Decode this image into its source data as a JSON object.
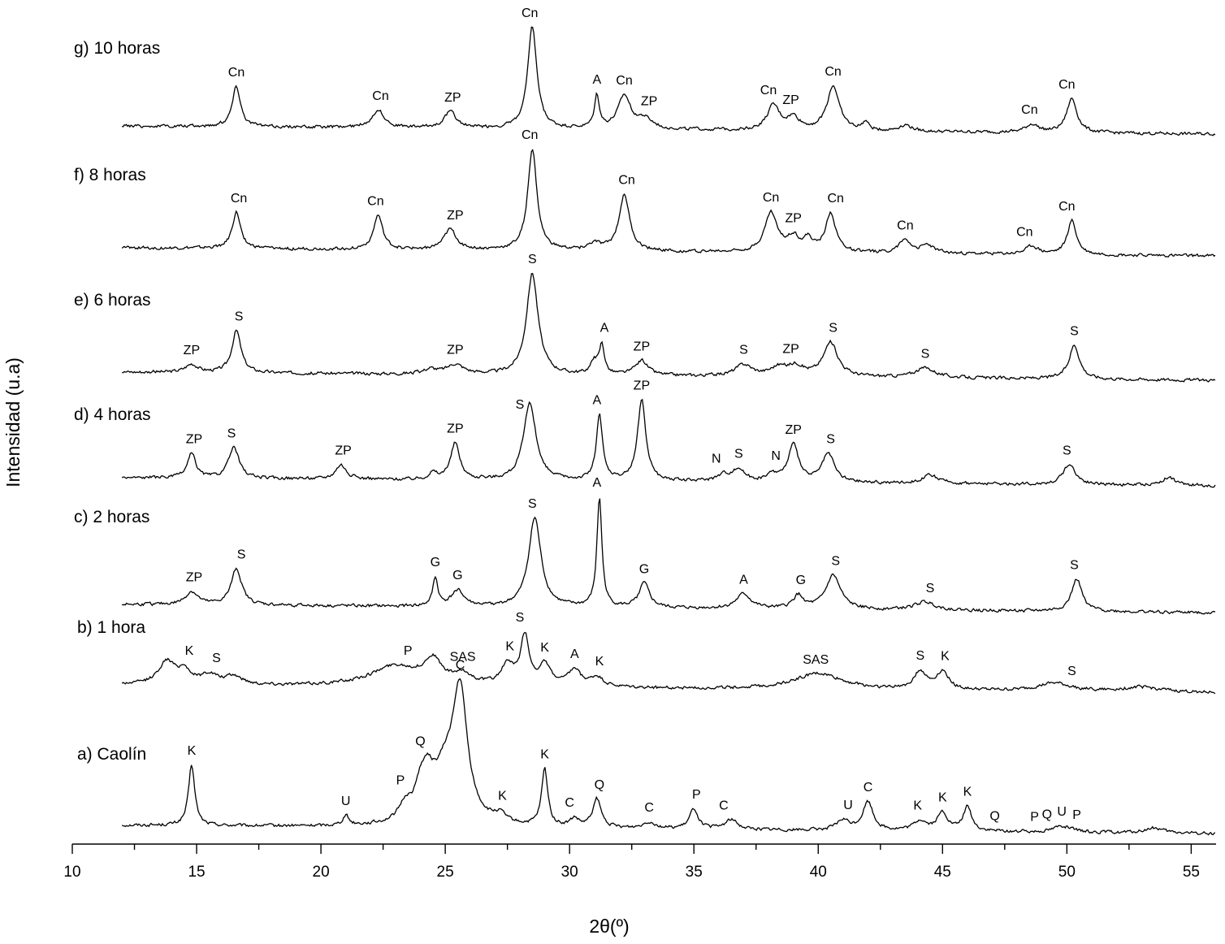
{
  "chart_data": {
    "type": "line",
    "xlabel": "2θ(º)",
    "ylabel": "Intensidad (u.a)",
    "xlim": [
      10,
      56
    ],
    "xticks_major": [
      10,
      15,
      20,
      25,
      30,
      35,
      40,
      45,
      50,
      55
    ],
    "xtick_minor_step": 2.5,
    "grid": false,
    "legend": "none",
    "series": [
      {
        "name": "a) Caolín",
        "baseline": 0,
        "noise": 4,
        "peaks": [
          [
            14.8,
            75,
            0.15
          ],
          [
            21.0,
            12,
            0.15
          ],
          [
            23.4,
            20,
            0.3
          ],
          [
            24.0,
            30,
            0.25
          ],
          [
            24.3,
            40,
            0.3
          ],
          [
            25.6,
            150,
            0.35
          ],
          [
            25.0,
            60,
            0.6
          ],
          [
            27.2,
            10,
            0.3
          ],
          [
            29.0,
            70,
            0.15
          ],
          [
            30.2,
            10,
            0.2
          ],
          [
            31.1,
            35,
            0.2
          ],
          [
            33.2,
            8,
            0.3
          ],
          [
            35.0,
            25,
            0.2
          ],
          [
            36.5,
            12,
            0.3
          ],
          [
            41.0,
            12,
            0.3
          ],
          [
            42.0,
            35,
            0.25
          ],
          [
            44.1,
            12,
            0.3
          ],
          [
            45.0,
            22,
            0.25
          ],
          [
            46.0,
            30,
            0.2
          ],
          [
            49.8,
            8,
            0.4
          ],
          [
            53.5,
            6,
            0.4
          ]
        ],
        "labels": [
          [
            "K",
            14.8
          ],
          [
            "U",
            21.0
          ],
          [
            "P",
            23.2
          ],
          [
            "Q",
            24.0
          ],
          [
            "C",
            25.6
          ],
          [
            "K",
            27.3
          ],
          [
            "K",
            29.0
          ],
          [
            "C",
            30.0
          ],
          [
            "Q",
            31.2
          ],
          [
            "C",
            33.2
          ],
          [
            "P",
            35.1
          ],
          [
            "C",
            36.2
          ],
          [
            "U",
            41.2
          ],
          [
            "C",
            42.0
          ],
          [
            "K",
            44.0
          ],
          [
            "K",
            45.0
          ],
          [
            "K",
            46.0
          ],
          [
            "Q",
            47.1
          ],
          [
            "P",
            48.7
          ],
          [
            "Q",
            49.2
          ],
          [
            "U",
            49.8
          ],
          [
            "P",
            50.4
          ]
        ]
      },
      {
        "name": "b) 1 hora",
        "baseline": 0,
        "noise": 4,
        "peaks": [
          [
            13.8,
            28,
            0.4
          ],
          [
            14.5,
            16,
            0.3
          ],
          [
            15.5,
            12,
            0.4
          ],
          [
            16.5,
            10,
            0.4
          ],
          [
            23.0,
            25,
            1.2
          ],
          [
            24.5,
            28,
            0.4
          ],
          [
            25.7,
            12,
            0.5
          ],
          [
            27.5,
            25,
            0.3
          ],
          [
            28.2,
            60,
            0.2
          ],
          [
            29.0,
            25,
            0.3
          ],
          [
            30.2,
            20,
            0.3
          ],
          [
            31.1,
            12,
            0.3
          ],
          [
            40.0,
            20,
            1.2
          ],
          [
            44.1,
            22,
            0.3
          ],
          [
            45.0,
            22,
            0.3
          ],
          [
            49.5,
            10,
            0.8
          ],
          [
            53.0,
            6,
            1.0
          ]
        ],
        "labels": [
          [
            "K",
            14.7
          ],
          [
            "S",
            15.8
          ],
          [
            "P",
            23.5
          ],
          [
            "SAS",
            25.7
          ],
          [
            "K",
            27.6
          ],
          [
            "S",
            28.0
          ],
          [
            "K",
            29.0
          ],
          [
            "A",
            30.2
          ],
          [
            "K",
            31.2
          ],
          [
            "SAS",
            39.9
          ],
          [
            "S",
            44.1
          ],
          [
            "K",
            45.1
          ],
          [
            "S",
            50.2
          ]
        ]
      },
      {
        "name": "c) 2 horas",
        "baseline": 0,
        "noise": 4,
        "peaks": [
          [
            14.8,
            16,
            0.3
          ],
          [
            16.6,
            45,
            0.25
          ],
          [
            24.6,
            35,
            0.12
          ],
          [
            25.5,
            20,
            0.3
          ],
          [
            28.6,
            110,
            0.3
          ],
          [
            31.2,
            135,
            0.12
          ],
          [
            33.0,
            30,
            0.25
          ],
          [
            37.0,
            18,
            0.35
          ],
          [
            39.2,
            16,
            0.25
          ],
          [
            40.6,
            42,
            0.35
          ],
          [
            44.3,
            10,
            0.5
          ],
          [
            50.4,
            40,
            0.25
          ]
        ],
        "labels": [
          [
            "ZP",
            14.9
          ],
          [
            "S",
            16.8
          ],
          [
            "G",
            24.6
          ],
          [
            "G",
            25.5
          ],
          [
            "S",
            28.5
          ],
          [
            "A",
            31.1
          ],
          [
            "G",
            33.0
          ],
          [
            "A",
            37.0
          ],
          [
            "G",
            39.3
          ],
          [
            "S",
            40.7
          ],
          [
            "S",
            44.5
          ],
          [
            "S",
            50.3
          ]
        ]
      },
      {
        "name": "d) 4 horas",
        "baseline": 0,
        "noise": 4,
        "peaks": [
          [
            14.8,
            30,
            0.2
          ],
          [
            16.5,
            38,
            0.25
          ],
          [
            20.8,
            18,
            0.25
          ],
          [
            24.5,
            8,
            0.2
          ],
          [
            25.4,
            45,
            0.22
          ],
          [
            28.4,
            95,
            0.3
          ],
          [
            31.2,
            80,
            0.15
          ],
          [
            32.9,
            100,
            0.2
          ],
          [
            36.2,
            8,
            0.3
          ],
          [
            36.8,
            15,
            0.3
          ],
          [
            38.2,
            8,
            0.3
          ],
          [
            39.0,
            45,
            0.25
          ],
          [
            40.4,
            35,
            0.3
          ],
          [
            44.5,
            10,
            0.4
          ],
          [
            50.1,
            25,
            0.3
          ],
          [
            54.1,
            10,
            0.3
          ]
        ],
        "labels": [
          [
            "ZP",
            14.9
          ],
          [
            "S",
            16.4
          ],
          [
            "ZP",
            20.9
          ],
          [
            "ZP",
            25.4
          ],
          [
            "S",
            28.0
          ],
          [
            "A",
            31.1
          ],
          [
            "ZP",
            32.9
          ],
          [
            "N",
            35.9
          ],
          [
            "S",
            36.8
          ],
          [
            "N",
            38.3
          ],
          [
            "ZP",
            39.0
          ],
          [
            "S",
            40.5
          ],
          [
            "S",
            50.0
          ]
        ]
      },
      {
        "name": "e) 6 horas",
        "baseline": 0,
        "noise": 4,
        "peaks": [
          [
            14.8,
            10,
            0.3
          ],
          [
            16.6,
            52,
            0.22
          ],
          [
            24.4,
            6,
            0.3
          ],
          [
            25.4,
            12,
            0.4
          ],
          [
            28.5,
            125,
            0.28
          ],
          [
            31.0,
            15,
            0.2
          ],
          [
            31.3,
            35,
            0.12
          ],
          [
            32.9,
            18,
            0.3
          ],
          [
            37.0,
            14,
            0.4
          ],
          [
            38.4,
            10,
            0.4
          ],
          [
            39.1,
            12,
            0.4
          ],
          [
            40.5,
            42,
            0.35
          ],
          [
            44.3,
            12,
            0.5
          ],
          [
            50.3,
            42,
            0.25
          ]
        ],
        "labels": [
          [
            "ZP",
            14.8
          ],
          [
            "S",
            16.7
          ],
          [
            "ZP",
            25.4
          ],
          [
            "S",
            28.5
          ],
          [
            "A",
            31.4
          ],
          [
            "ZP",
            32.9
          ],
          [
            "S",
            37.0
          ],
          [
            "ZP",
            38.9
          ],
          [
            "S",
            40.6
          ],
          [
            "S",
            44.3
          ],
          [
            "S",
            50.3
          ]
        ]
      },
      {
        "name": "f) 8 horas",
        "baseline": 0,
        "noise": 4,
        "peaks": [
          [
            16.6,
            45,
            0.2
          ],
          [
            22.3,
            42,
            0.22
          ],
          [
            25.2,
            25,
            0.3
          ],
          [
            28.5,
            125,
            0.22
          ],
          [
            31.0,
            8,
            0.3
          ],
          [
            32.2,
            70,
            0.25
          ],
          [
            38.1,
            48,
            0.3
          ],
          [
            39.0,
            18,
            0.3
          ],
          [
            39.6,
            14,
            0.2
          ],
          [
            40.5,
            48,
            0.25
          ],
          [
            43.5,
            16,
            0.3
          ],
          [
            44.4,
            10,
            0.3
          ],
          [
            48.6,
            10,
            0.3
          ],
          [
            50.2,
            42,
            0.22
          ]
        ],
        "labels": [
          [
            "Cn",
            16.7
          ],
          [
            "Cn",
            22.2
          ],
          [
            "ZP",
            25.4
          ],
          [
            "Cn",
            28.4
          ],
          [
            "Cn",
            32.3
          ],
          [
            "Cn",
            38.1
          ],
          [
            "ZP",
            39.0
          ],
          [
            "Cn",
            40.7
          ],
          [
            "Cn",
            43.5
          ],
          [
            "Cn",
            48.3
          ],
          [
            "Cn",
            50.0
          ]
        ]
      },
      {
        "name": "g) 10 horas",
        "baseline": 0,
        "noise": 4,
        "peaks": [
          [
            16.6,
            50,
            0.2
          ],
          [
            22.3,
            22,
            0.3
          ],
          [
            25.2,
            20,
            0.3
          ],
          [
            28.5,
            125,
            0.22
          ],
          [
            31.1,
            40,
            0.12
          ],
          [
            32.2,
            40,
            0.3
          ],
          [
            33.0,
            12,
            0.4
          ],
          [
            38.2,
            30,
            0.3
          ],
          [
            39.0,
            15,
            0.3
          ],
          [
            40.6,
            55,
            0.3
          ],
          [
            41.9,
            10,
            0.15
          ],
          [
            43.5,
            8,
            0.3
          ],
          [
            48.6,
            10,
            0.3
          ],
          [
            50.2,
            42,
            0.25
          ]
        ],
        "labels": [
          [
            "Cn",
            16.6
          ],
          [
            "Cn",
            22.4
          ],
          [
            "ZP",
            25.3
          ],
          [
            "Cn",
            28.4
          ],
          [
            "A",
            31.1
          ],
          [
            "Cn",
            32.2
          ],
          [
            "ZP",
            33.2
          ],
          [
            "Cn",
            38.0
          ],
          [
            "ZP",
            38.9
          ],
          [
            "Cn",
            40.6
          ],
          [
            "Cn",
            48.5
          ],
          [
            "Cn",
            50.0
          ]
        ]
      }
    ]
  }
}
